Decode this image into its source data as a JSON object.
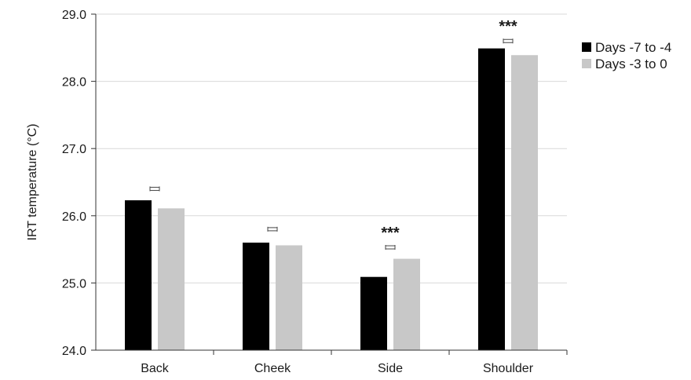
{
  "chart_data": {
    "type": "bar",
    "title": "",
    "xlabel": "",
    "ylabel": "IRT temperature (°C)",
    "ylim": [
      24.0,
      29.0
    ],
    "yticks": [
      "24.0",
      "25.0",
      "26.0",
      "27.0",
      "28.0",
      "29.0"
    ],
    "ytick_values": [
      24,
      25,
      26,
      27,
      28,
      29
    ],
    "grid": true,
    "legend_position": "right",
    "categories": [
      "Back",
      "Cheek",
      "Side",
      "Shoulder"
    ],
    "series": [
      {
        "name": "Days -7 to -4",
        "color": "#000000",
        "values": [
          26.23,
          25.6,
          25.09,
          28.49
        ]
      },
      {
        "name": "Days -3 to 0",
        "color": "#c8c8c8",
        "values": [
          26.11,
          25.56,
          25.36,
          28.39
        ]
      }
    ],
    "error_bars": [
      26.4,
      25.8,
      25.53,
      28.6
    ],
    "significance": [
      "",
      "",
      "***",
      "***"
    ]
  }
}
